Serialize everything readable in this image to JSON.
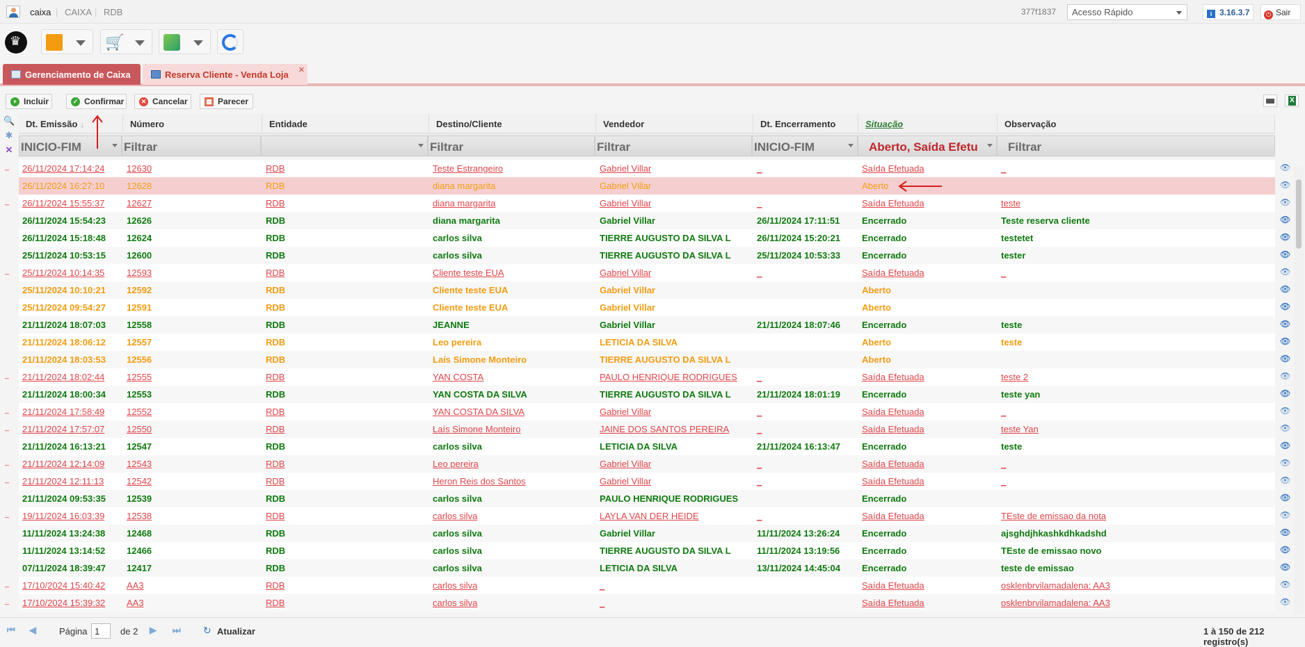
{
  "topbar": {
    "user": "caixa",
    "sep": "|",
    "app": "CAIXA",
    "store": "RDB",
    "session_id": "377f1837",
    "quick_access": "Acesso Rápido",
    "version": "3.16.3.7",
    "logout": "Sair"
  },
  "tabs": [
    {
      "label": "Gerenciamento de Caixa"
    },
    {
      "label": "Reserva Cliente - Venda Loja"
    }
  ],
  "actions": {
    "add": "Incluir",
    "confirm": "Confirmar",
    "cancel": "Cancelar",
    "opinion": "Parecer"
  },
  "columns": [
    "Dt. Emissão",
    "Número",
    "Entidade",
    "Destino/Cliente",
    "Vendedor",
    "Dt. Encerramento",
    "Situação",
    "Observação"
  ],
  "filters": {
    "emissao": "INICIO-FIM",
    "numero": "Filtrar",
    "entidade": "",
    "destino": "Filtrar",
    "vendedor": "Filtrar",
    "encerramento": "INICIO-FIM",
    "situacao": "Aberto, Saída Efetu",
    "observacao": "Filtrar"
  },
  "rows": [
    {
      "style": "link",
      "emissao": "26/11/2024 17:14:24",
      "numero": "12630",
      "entidade": "RDB",
      "destino": "Teste Estrangeiro",
      "vendedor": "Gabriel Villar",
      "encerramento": "_",
      "situacao": "Saída Efetuada",
      "obs": "_"
    },
    {
      "style": "sel",
      "emissao": "26/11/2024 16:27:10",
      "numero": "12628",
      "entidade": "RDB",
      "destino": "diana margarita",
      "vendedor": "Gabriel Villar",
      "encerramento": "",
      "situacao": "Aberto",
      "obs": ""
    },
    {
      "style": "link",
      "emissao": "26/11/2024 15:55:37",
      "numero": "12627",
      "entidade": "RDB",
      "destino": "diana margarita",
      "vendedor": "Gabriel Villar",
      "encerramento": "_",
      "situacao": "Saída Efetuada",
      "obs": "teste"
    },
    {
      "style": "green",
      "emissao": "26/11/2024 15:54:23",
      "numero": "12626",
      "entidade": "RDB",
      "destino": "diana margarita",
      "vendedor": "Gabriel Villar",
      "encerramento": "26/11/2024 17:11:51",
      "situacao": "Encerrado",
      "obs": "Teste reserva cliente"
    },
    {
      "style": "green",
      "emissao": "26/11/2024 15:18:48",
      "numero": "12624",
      "entidade": "RDB",
      "destino": "carlos silva",
      "vendedor": "TIERRE AUGUSTO DA SILVA L",
      "encerramento": "26/11/2024 15:20:21",
      "situacao": "Encerrado",
      "obs": "testetet"
    },
    {
      "style": "green",
      "emissao": "25/11/2024 10:53:15",
      "numero": "12600",
      "entidade": "RDB",
      "destino": "carlos silva",
      "vendedor": "TIERRE AUGUSTO DA SILVA L",
      "encerramento": "25/11/2024 10:53:33",
      "situacao": "Encerrado",
      "obs": "tester"
    },
    {
      "style": "link",
      "emissao": "25/11/2024 10:14:35",
      "numero": "12593",
      "entidade": "RDB",
      "destino": "Cliente teste EUA",
      "vendedor": "Gabriel Villar",
      "encerramento": "_",
      "situacao": "Saída Efetuada",
      "obs": "_"
    },
    {
      "style": "orange",
      "emissao": "25/11/2024 10:10:21",
      "numero": "12592",
      "entidade": "RDB",
      "destino": "Cliente teste EUA",
      "vendedor": "Gabriel Villar",
      "encerramento": "",
      "situacao": "Aberto",
      "obs": ""
    },
    {
      "style": "orange",
      "emissao": "25/11/2024 09:54:27",
      "numero": "12591",
      "entidade": "RDB",
      "destino": "Cliente teste EUA",
      "vendedor": "Gabriel Villar",
      "encerramento": "",
      "situacao": "Aberto",
      "obs": ""
    },
    {
      "style": "green",
      "emissao": "21/11/2024 18:07:03",
      "numero": "12558",
      "entidade": "RDB",
      "destino": "JEANNE",
      "vendedor": "Gabriel Villar",
      "encerramento": "21/11/2024 18:07:46",
      "situacao": "Encerrado",
      "obs": "teste"
    },
    {
      "style": "orange",
      "emissao": "21/11/2024 18:06:12",
      "numero": "12557",
      "entidade": "RDB",
      "destino": "Leo pereira",
      "vendedor": "LETICIA DA SILVA",
      "encerramento": "",
      "situacao": "Aberto",
      "obs": "teste"
    },
    {
      "style": "orange",
      "emissao": "21/11/2024 18:03:53",
      "numero": "12556",
      "entidade": "RDB",
      "destino": "Laís Simone Monteiro",
      "vendedor": "TIERRE AUGUSTO DA SILVA L",
      "encerramento": "",
      "situacao": "Aberto",
      "obs": ""
    },
    {
      "style": "link",
      "emissao": "21/11/2024 18:02:44",
      "numero": "12555",
      "entidade": "RDB",
      "destino": "YAN COSTA",
      "vendedor": "PAULO HENRIQUE RODRIGUES",
      "encerramento": "_",
      "situacao": "Saída Efetuada",
      "obs": "teste 2"
    },
    {
      "style": "green",
      "emissao": "21/11/2024 18:00:34",
      "numero": "12553",
      "entidade": "RDB",
      "destino": "YAN COSTA DA SILVA",
      "vendedor": "TIERRE AUGUSTO DA SILVA L",
      "encerramento": "21/11/2024 18:01:19",
      "situacao": "Encerrado",
      "obs": "teste yan"
    },
    {
      "style": "link",
      "emissao": "21/11/2024 17:58:49",
      "numero": "12552",
      "entidade": "RDB",
      "destino": "YAN COSTA DA SILVA",
      "vendedor": "Gabriel Villar",
      "encerramento": "_",
      "situacao": "Saída Efetuada",
      "obs": "_"
    },
    {
      "style": "link",
      "emissao": "21/11/2024 17:57:07",
      "numero": "12550",
      "entidade": "RDB",
      "destino": "Laís Simone Monteiro",
      "vendedor": "JAINE DOS SANTOS PEREIRA",
      "encerramento": "_",
      "situacao": "Saída Efetuada",
      "obs": "teste Yan"
    },
    {
      "style": "green",
      "emissao": "21/11/2024 16:13:21",
      "numero": "12547",
      "entidade": "RDB",
      "destino": "carlos silva",
      "vendedor": "LETICIA DA SILVA",
      "encerramento": "21/11/2024 16:13:47",
      "situacao": "Encerrado",
      "obs": "teste"
    },
    {
      "style": "link",
      "emissao": "21/11/2024 12:14:09",
      "numero": "12543",
      "entidade": "RDB",
      "destino": "Leo pereira",
      "vendedor": "Gabriel Villar",
      "encerramento": "_",
      "situacao": "Saída Efetuada",
      "obs": "_"
    },
    {
      "style": "link",
      "emissao": "21/11/2024 12:11:13",
      "numero": "12542",
      "entidade": "RDB",
      "destino": "Heron Reis dos Santos",
      "vendedor": "Gabriel Villar",
      "encerramento": "_",
      "situacao": "Saída Efetuada",
      "obs": "_"
    },
    {
      "style": "green",
      "emissao": "21/11/2024 09:53:35",
      "numero": "12539",
      "entidade": "RDB",
      "destino": "carlos silva",
      "vendedor": "PAULO HENRIQUE RODRIGUES",
      "encerramento": "",
      "situacao": "Encerrado",
      "obs": ""
    },
    {
      "style": "link",
      "emissao": "19/11/2024 16:03:39",
      "numero": "12538",
      "entidade": "RDB",
      "destino": "carlos silva",
      "vendedor": "LAYLA VAN DER HEIDE",
      "encerramento": "_",
      "situacao": "Saída Efetuada",
      "obs": "TEste de emissao da nota"
    },
    {
      "style": "green",
      "emissao": "11/11/2024 13:24:38",
      "numero": "12468",
      "entidade": "RDB",
      "destino": "carlos silva",
      "vendedor": "Gabriel Villar",
      "encerramento": "11/11/2024 13:26:24",
      "situacao": "Encerrado",
      "obs": "ajsghdjhkashkdhkadshd"
    },
    {
      "style": "green",
      "emissao": "11/11/2024 13:14:52",
      "numero": "12466",
      "entidade": "RDB",
      "destino": "carlos silva",
      "vendedor": "TIERRE AUGUSTO DA SILVA L",
      "encerramento": "11/11/2024 13:19:56",
      "situacao": "Encerrado",
      "obs": "TEste de emissao novo"
    },
    {
      "style": "green",
      "emissao": "07/11/2024 18:39:47",
      "numero": "12417",
      "entidade": "RDB",
      "destino": "carlos silva",
      "vendedor": "LETICIA DA SILVA",
      "encerramento": "13/11/2024 14:45:04",
      "situacao": "Encerrado",
      "obs": "teste de emissao"
    },
    {
      "style": "link",
      "emissao": "17/10/2024 15:40:42",
      "numero": "AA3",
      "entidade": "RDB",
      "destino": "carlos silva",
      "vendedor": "_",
      "encerramento": "",
      "situacao": "Saída Efetuada",
      "obs": "osklenbrvilamadalena: AA3"
    },
    {
      "style": "link",
      "emissao": "17/10/2024 15:39:32",
      "numero": "AA3",
      "entidade": "RDB",
      "destino": "carlos silva",
      "vendedor": "_",
      "encerramento": "",
      "situacao": "Saída Efetuada",
      "obs": "osklenbrvilamadalena: AA3"
    }
  ],
  "pager": {
    "page_label": "Página",
    "page": "1",
    "of_label": "de 2",
    "refresh": "Atualizar",
    "summary": "1 à 150 de 212 registro(s)"
  },
  "colors": {
    "accent": "#c9585c",
    "closed": "#0f7a0f",
    "open": "#f39c12",
    "link": "#e0454a"
  }
}
